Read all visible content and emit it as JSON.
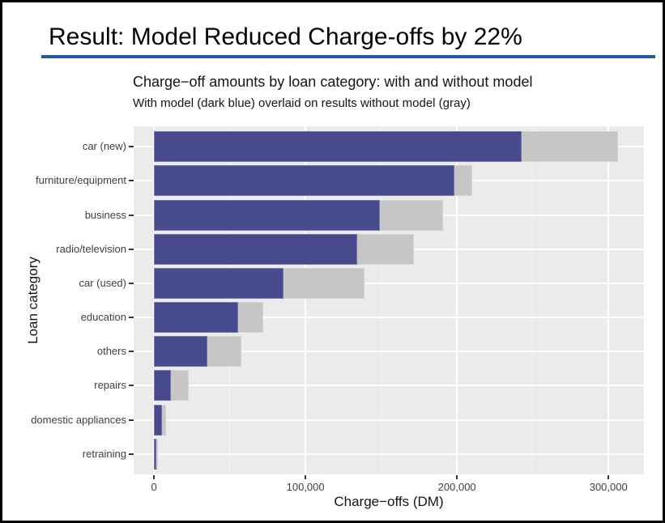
{
  "slide": {
    "title": "Result: Model Reduced Charge-offs by 22%",
    "divider_color": "#1e5c9d"
  },
  "chart_data": {
    "type": "bar",
    "orientation": "horizontal",
    "title": "Charge−off amounts by loan category: with and without model",
    "subtitle": "With model (dark blue) overlaid on results without model (gray)",
    "xlabel": "Charge−offs (DM)",
    "ylabel": "Loan category",
    "categories": [
      "car (new)",
      "furniture/equipment",
      "business",
      "radio/television",
      "car (used)",
      "education",
      "others",
      "repairs",
      "domestic appliances",
      "retraining"
    ],
    "series": [
      {
        "name": "without model",
        "color": "#c6c6c6",
        "values": [
          306500,
          210000,
          191000,
          171500,
          139000,
          72000,
          57500,
          23000,
          8000,
          2500
        ]
      },
      {
        "name": "with model",
        "color": "#474b8e",
        "values": [
          242500,
          198500,
          149000,
          134000,
          85500,
          55500,
          35500,
          11000,
          5500,
          1500
        ]
      }
    ],
    "x_ticks": [
      {
        "value": 0,
        "label": "0"
      },
      {
        "value": 100000,
        "label": "100,000"
      },
      {
        "value": 200000,
        "label": "200,000"
      },
      {
        "value": 300000,
        "label": "300,000"
      }
    ],
    "x_minor_ticks": [
      50000,
      150000,
      250000
    ],
    "xlim": [
      -13400,
      323400
    ],
    "legend": "none",
    "grid": true,
    "panel_bg": "#ebebeb",
    "grid_color": "#ffffff",
    "bar_width_fraction": 0.9,
    "category_axis_expansion": 0.6
  }
}
